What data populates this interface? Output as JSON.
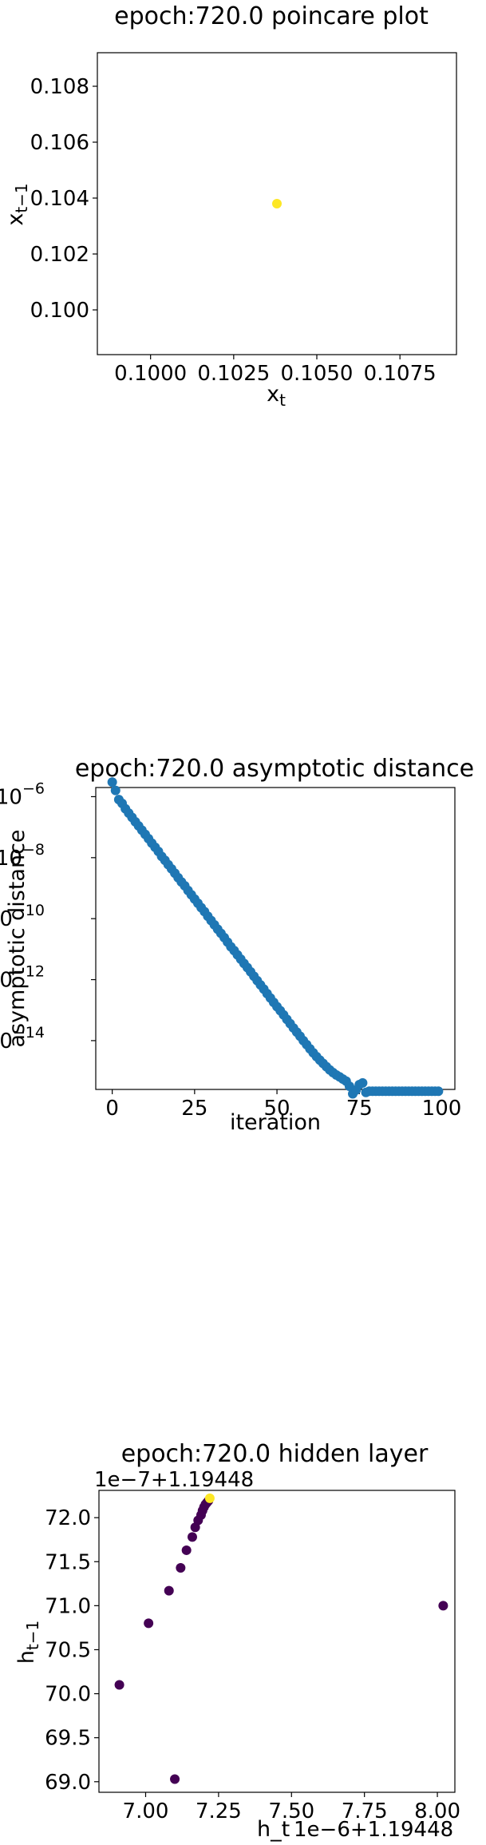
{
  "chart_data": [
    {
      "type": "scatter",
      "title": "epoch:720.0 poincare plot",
      "xlabel": "x_t",
      "ylabel": "x_{t-1}",
      "xlim": [
        0.0984,
        0.1092
      ],
      "ylim": [
        0.0984,
        0.1092
      ],
      "xticks": [
        0.1,
        0.1025,
        0.105,
        0.1075
      ],
      "xtick_labels": [
        "0.1000",
        "0.1025",
        "0.1050",
        "0.1075"
      ],
      "yticks": [
        0.1,
        0.102,
        0.104,
        0.106,
        0.108
      ],
      "ytick_labels": [
        "0.100",
        "0.102",
        "0.104",
        "0.106",
        "0.108"
      ],
      "grid": false,
      "colors": [
        "#fde725"
      ],
      "points": [
        {
          "x": 0.1038,
          "y": 0.1038
        }
      ]
    },
    {
      "type": "scatter",
      "title": "epoch:720.0 asymptotic distance",
      "xlabel": "iteration",
      "ylabel": "asymptotic distance",
      "y_scale": "log",
      "xlim": [
        -5,
        104
      ],
      "ylim_log10": [
        -15.6,
        -5.7
      ],
      "xticks": [
        0,
        25,
        50,
        75,
        100
      ],
      "xtick_labels": [
        "0",
        "25",
        "50",
        "75",
        "100"
      ],
      "yticks": [
        1e-06,
        1e-08,
        1e-10,
        1e-12,
        1e-14
      ],
      "ytick_labels": [
        "10",
        "10",
        "10",
        "10",
        "10"
      ],
      "ytick_exponents": [
        "−6",
        "−8",
        "−10",
        "−12",
        "−14"
      ],
      "grid": false,
      "color": "#1f77b4",
      "points": [
        {
          "x": 0,
          "y": 3e-06
        },
        {
          "x": 1,
          "y": 1.6e-06
        },
        {
          "x": 2,
          "y": 8e-07
        },
        {
          "x": 3,
          "y": 6e-07
        },
        {
          "x": 4,
          "y": 4e-07
        },
        {
          "x": 5,
          "y": 2.9e-07
        },
        {
          "x": 6,
          "y": 2.1e-07
        },
        {
          "x": 7,
          "y": 1.5e-07
        },
        {
          "x": 8,
          "y": 1.1e-07
        },
        {
          "x": 9,
          "y": 8e-08
        },
        {
          "x": 10,
          "y": 5.8e-08
        },
        {
          "x": 11,
          "y": 4.2e-08
        },
        {
          "x": 12,
          "y": 3e-08
        },
        {
          "x": 13,
          "y": 2.2e-08
        },
        {
          "x": 14,
          "y": 1.6e-08
        },
        {
          "x": 15,
          "y": 1.1e-08
        },
        {
          "x": 16,
          "y": 8.2e-09
        },
        {
          "x": 17,
          "y": 5.9e-09
        },
        {
          "x": 18,
          "y": 4.3e-09
        },
        {
          "x": 19,
          "y": 3.1e-09
        },
        {
          "x": 20,
          "y": 2.2e-09
        },
        {
          "x": 21,
          "y": 1.6e-09
        },
        {
          "x": 22,
          "y": 1.2e-09
        },
        {
          "x": 23,
          "y": 8.4e-10
        },
        {
          "x": 24,
          "y": 6.1e-10
        },
        {
          "x": 25,
          "y": 4.4e-10
        },
        {
          "x": 26,
          "y": 3.2e-10
        },
        {
          "x": 27,
          "y": 2.3e-10
        },
        {
          "x": 28,
          "y": 1.7e-10
        },
        {
          "x": 29,
          "y": 1.2e-10
        },
        {
          "x": 30,
          "y": 8.7e-11
        },
        {
          "x": 31,
          "y": 6.3e-11
        },
        {
          "x": 32,
          "y": 4.5e-11
        },
        {
          "x": 33,
          "y": 3.3e-11
        },
        {
          "x": 34,
          "y": 2.4e-11
        },
        {
          "x": 35,
          "y": 1.7e-11
        },
        {
          "x": 36,
          "y": 1.2e-11
        },
        {
          "x": 37,
          "y": 9e-12
        },
        {
          "x": 38,
          "y": 6.5e-12
        },
        {
          "x": 39,
          "y": 4.7e-12
        },
        {
          "x": 40,
          "y": 3.4e-12
        },
        {
          "x": 41,
          "y": 2.5e-12
        },
        {
          "x": 42,
          "y": 1.8e-12
        },
        {
          "x": 43,
          "y": 1.3e-12
        },
        {
          "x": 44,
          "y": 9.3e-13
        },
        {
          "x": 45,
          "y": 6.7e-13
        },
        {
          "x": 46,
          "y": 4.9e-13
        },
        {
          "x": 47,
          "y": 3.5e-13
        },
        {
          "x": 48,
          "y": 2.5e-13
        },
        {
          "x": 49,
          "y": 1.8e-13
        },
        {
          "x": 50,
          "y": 1.3e-13
        },
        {
          "x": 51,
          "y": 9.6e-14
        },
        {
          "x": 52,
          "y": 7e-14
        },
        {
          "x": 53,
          "y": 5e-14
        },
        {
          "x": 54,
          "y": 3.6e-14
        },
        {
          "x": 55,
          "y": 2.6e-14
        },
        {
          "x": 56,
          "y": 1.9e-14
        },
        {
          "x": 57,
          "y": 1.4e-14
        },
        {
          "x": 58,
          "y": 1e-14
        },
        {
          "x": 59,
          "y": 7.4e-15
        },
        {
          "x": 60,
          "y": 5.4e-15
        },
        {
          "x": 61,
          "y": 4e-15
        },
        {
          "x": 62,
          "y": 3e-15
        },
        {
          "x": 63,
          "y": 2.3e-15
        },
        {
          "x": 64,
          "y": 1.8e-15
        },
        {
          "x": 65,
          "y": 1.4e-15
        },
        {
          "x": 66,
          "y": 1.1e-15
        },
        {
          "x": 67,
          "y": 9e-16
        },
        {
          "x": 68,
          "y": 7.5e-16
        },
        {
          "x": 69,
          "y": 6.5e-16
        },
        {
          "x": 70,
          "y": 5.5e-16
        },
        {
          "x": 71,
          "y": 4.7e-16
        },
        {
          "x": 72,
          "y": 3.2e-16
        },
        {
          "x": 73,
          "y": 1.8e-16
        },
        {
          "x": 74,
          "y": 2.4e-16
        },
        {
          "x": 75,
          "y": 3.6e-16
        },
        {
          "x": 76,
          "y": 4.1e-16
        },
        {
          "x": 77,
          "y": 2e-16
        },
        {
          "x": 78,
          "y": 2.2e-16
        },
        {
          "x": 79,
          "y": 2.2e-16
        },
        {
          "x": 80,
          "y": 2.2e-16
        },
        {
          "x": 81,
          "y": 2.2e-16
        },
        {
          "x": 82,
          "y": 2.2e-16
        },
        {
          "x": 83,
          "y": 2.2e-16
        },
        {
          "x": 84,
          "y": 2.2e-16
        },
        {
          "x": 85,
          "y": 2.2e-16
        },
        {
          "x": 86,
          "y": 2.2e-16
        },
        {
          "x": 87,
          "y": 2.2e-16
        },
        {
          "x": 88,
          "y": 2.2e-16
        },
        {
          "x": 89,
          "y": 2.2e-16
        },
        {
          "x": 90,
          "y": 2.2e-16
        },
        {
          "x": 91,
          "y": 2.2e-16
        },
        {
          "x": 92,
          "y": 2.2e-16
        },
        {
          "x": 93,
          "y": 2.2e-16
        },
        {
          "x": 94,
          "y": 2.2e-16
        },
        {
          "x": 95,
          "y": 2.2e-16
        },
        {
          "x": 96,
          "y": 2.2e-16
        },
        {
          "x": 97,
          "y": 2.2e-16
        },
        {
          "x": 98,
          "y": 2.2e-16
        },
        {
          "x": 99,
          "y": 2.2e-16
        }
      ]
    },
    {
      "type": "scatter",
      "title": "epoch:720.0 hidden layer",
      "xlabel": "h_t",
      "ylabel": "h_{t-1}",
      "x_offset_label": "1e−6+1.19448",
      "y_offset_label": "1e−7+1.19448",
      "xlim": [
        6.84,
        8.06
      ],
      "ylim": [
        68.88,
        72.31
      ],
      "xticks": [
        7.0,
        7.25,
        7.5,
        7.75,
        8.0
      ],
      "xtick_labels": [
        "7.00",
        "7.25",
        "7.50",
        "7.75",
        "8.00"
      ],
      "yticks": [
        69.0,
        69.5,
        70.0,
        70.5,
        71.0,
        71.5,
        72.0
      ],
      "ytick_labels": [
        "69.0",
        "69.5",
        "70.0",
        "70.5",
        "71.0",
        "71.5",
        "72.0"
      ],
      "grid": false,
      "colormap": "viridis",
      "colors": [
        "#440154",
        "#fde725"
      ],
      "points": [
        {
          "x": 8.02,
          "y": 71.0
        },
        {
          "x": 6.91,
          "y": 70.1
        },
        {
          "x": 7.1,
          "y": 69.03
        },
        {
          "x": 7.01,
          "y": 70.8
        },
        {
          "x": 7.08,
          "y": 71.17
        },
        {
          "x": 7.12,
          "y": 71.43
        },
        {
          "x": 7.14,
          "y": 71.63
        },
        {
          "x": 7.16,
          "y": 71.78
        },
        {
          "x": 7.17,
          "y": 71.89
        },
        {
          "x": 7.18,
          "y": 71.97
        },
        {
          "x": 7.19,
          "y": 72.03
        },
        {
          "x": 7.195,
          "y": 72.08
        },
        {
          "x": 7.2,
          "y": 72.12
        },
        {
          "x": 7.205,
          "y": 72.15
        },
        {
          "x": 7.21,
          "y": 72.17
        },
        {
          "x": 7.215,
          "y": 72.19
        },
        {
          "x": 7.22,
          "y": 72.22
        }
      ]
    }
  ]
}
